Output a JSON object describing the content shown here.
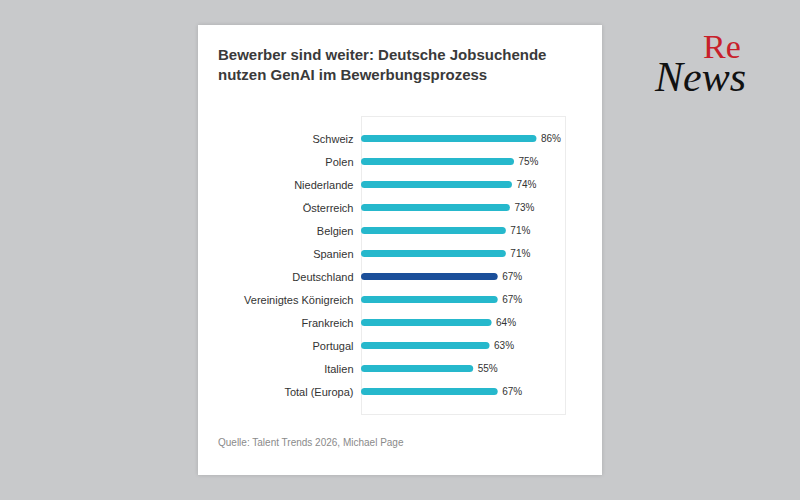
{
  "chart_data": {
    "type": "bar",
    "title": "Bewerber sind weiter: Deutsche Jobsuchende nutzen GenAI im Bewerbungsprozess",
    "caption": "Quelle: Talent Trends 2026, Michael Page",
    "categories": [
      "Schweiz",
      "Polen",
      "Niederlande",
      "Österreich",
      "Belgien",
      "Spanien",
      "Deutschland",
      "Vereinigtes Königreich",
      "Frankreich",
      "Portugal",
      "Italien",
      "Total (Europa)"
    ],
    "values": [
      86,
      75,
      74,
      73,
      71,
      71,
      67,
      67,
      64,
      63,
      55,
      67
    ],
    "value_labels": [
      "86%",
      "75%",
      "74%",
      "73%",
      "71%",
      "71%",
      "67%",
      "67%",
      "64%",
      "63%",
      "55%",
      "67%"
    ],
    "colors": [
      "#26b8cc",
      "#26b8cc",
      "#26b8cc",
      "#26b8cc",
      "#26b8cc",
      "#26b8cc",
      "#1b4f9a",
      "#26b8cc",
      "#26b8cc",
      "#26b8cc",
      "#26b8cc",
      "#26b8cc"
    ],
    "orientation": "horizontal",
    "data_labels": true,
    "tick_labels": "y",
    "grid": false,
    "xlim": [
      0,
      100
    ],
    "xticks": []
  },
  "logo": [
    "Re",
    "News"
  ]
}
